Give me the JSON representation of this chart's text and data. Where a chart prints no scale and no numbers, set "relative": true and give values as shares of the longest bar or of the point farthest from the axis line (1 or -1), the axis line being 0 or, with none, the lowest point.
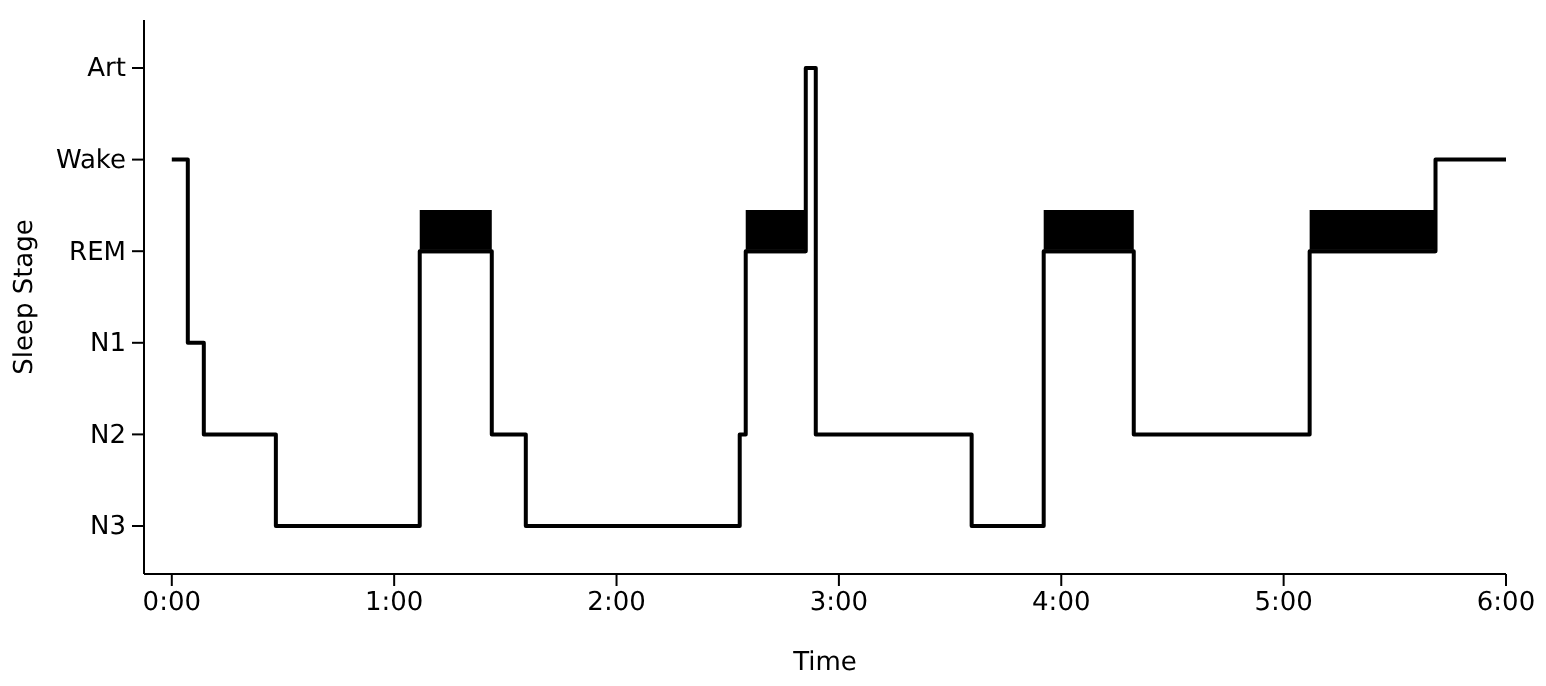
{
  "chart_data": {
    "type": "step",
    "relative": true,
    "xlabel": "Time",
    "ylabel": "Sleep Stage",
    "xlim": [
      -0.125,
      6
    ],
    "xticks": [
      {
        "value": 0,
        "label": "0:00"
      },
      {
        "value": 1,
        "label": "1:00"
      },
      {
        "value": 2,
        "label": "2:00"
      },
      {
        "value": 3,
        "label": "3:00"
      },
      {
        "value": 4,
        "label": "4:00"
      },
      {
        "value": 5,
        "label": "5:00"
      },
      {
        "value": 6,
        "label": "6:00"
      }
    ],
    "y_categories": [
      "Art",
      "Wake",
      "REM",
      "N1",
      "N2",
      "N3"
    ],
    "series": [
      {
        "color": "#000000",
        "x": [
          0,
          0.072,
          0.144,
          0.468,
          1.115,
          1.439,
          1.592,
          2.554,
          2.581,
          2.851,
          2.896,
          3.597,
          3.921,
          4.326,
          5.117,
          5.683,
          6.0
        ],
        "values": [
          0.8,
          0.4,
          0.2,
          0,
          0.6,
          0.2,
          0,
          0.2,
          0.6,
          1,
          0.2,
          0,
          0.6,
          0.2,
          0.6,
          0.8,
          0.8
        ]
      },
      {
        "color": "#000000",
        "x": [
          1.115,
          1.439
        ],
        "values": [
          0.6,
          0.6
        ],
        "lower": [
          0.6,
          0.6
        ],
        "upper": [
          0.69,
          0.69
        ]
      },
      {
        "color": "#000000",
        "x": [
          2.581,
          2.851
        ],
        "values": [
          0.6,
          0.6
        ],
        "lower": [
          0.6,
          0.6
        ],
        "upper": [
          0.69,
          0.69
        ]
      },
      {
        "color": "#000000",
        "x": [
          3.921,
          4.326
        ],
        "values": [
          0.6,
          0.6
        ],
        "lower": [
          0.6,
          0.6
        ],
        "upper": [
          0.69,
          0.69
        ]
      },
      {
        "color": "#000000",
        "x": [
          5.117,
          5.683
        ],
        "values": [
          0.6,
          0.6
        ],
        "lower": [
          0.6,
          0.6
        ],
        "upper": [
          0.69,
          0.69
        ]
      }
    ]
  }
}
